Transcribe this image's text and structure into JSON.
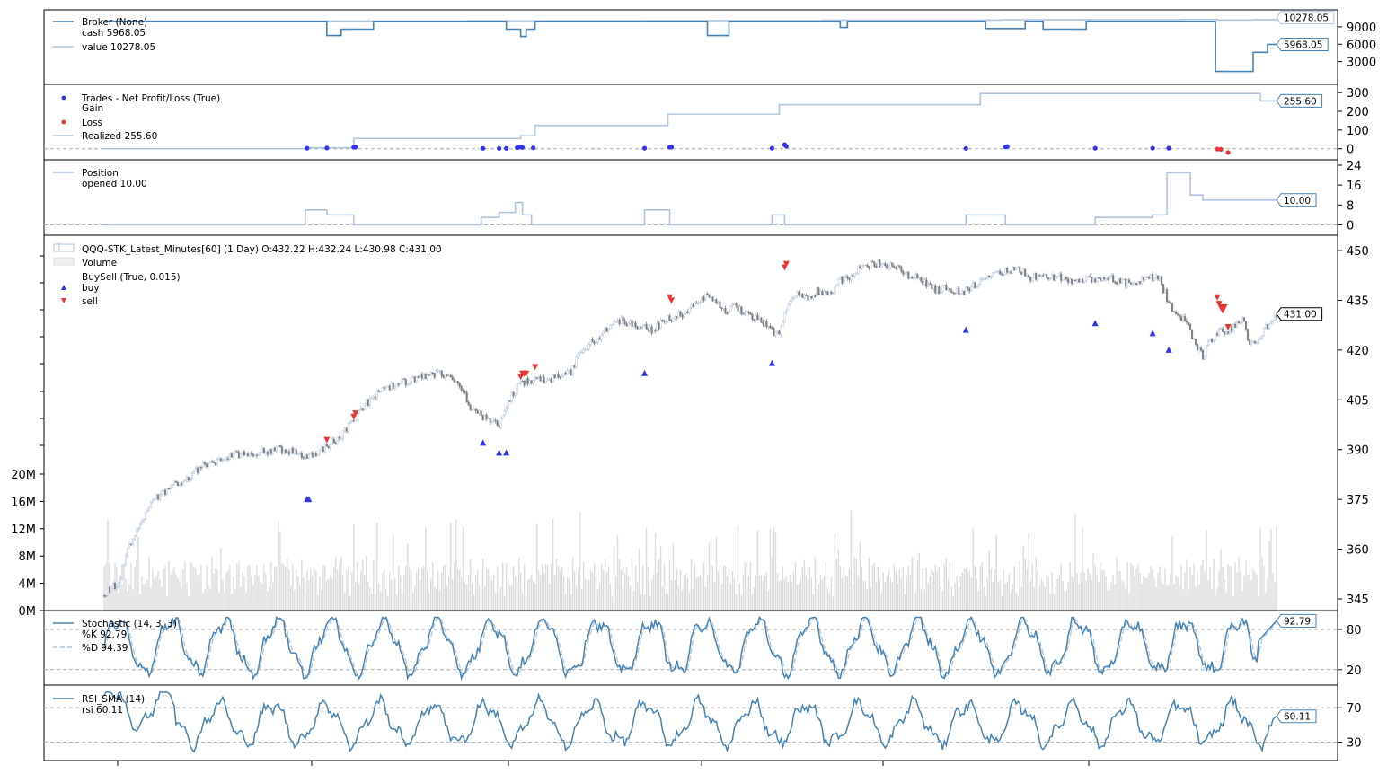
{
  "colors": {
    "line_blue": "#4682b4",
    "line_lightsteel": "#b0c4de",
    "gain": "#3333ee",
    "loss": "#ee3333",
    "candle_up": "#b0c4de",
    "candle_down": "#808080",
    "volume": "#dcdcdc",
    "refline": "#aaaaaa"
  },
  "chart_data": [
    {
      "id": "broker",
      "type": "line",
      "legend": [
        "Broker (None)",
        "cash 5968.05",
        "value 10278.05"
      ],
      "series": [
        {
          "name": "cash",
          "last": 5968.05,
          "tag": "5968.05",
          "steps": [
            [
              0,
              9950
            ],
            [
              124,
              9950
            ],
            [
              124,
              7500
            ],
            [
              132,
              7500
            ],
            [
              132,
              8600
            ],
            [
              150,
              8600
            ],
            [
              150,
              9950
            ],
            [
              224,
              9950
            ],
            [
              224,
              8600
            ],
            [
              232,
              8600
            ],
            [
              232,
              7350
            ],
            [
              235,
              7350
            ],
            [
              235,
              8600
            ],
            [
              240,
              8600
            ],
            [
              240,
              9950
            ],
            [
              336,
              9950
            ],
            [
              336,
              7500
            ],
            [
              348,
              7500
            ],
            [
              348,
              9950
            ],
            [
              410,
              9950
            ],
            [
              410,
              8900
            ],
            [
              414,
              8900
            ],
            [
              414,
              9950
            ],
            [
              491,
              9950
            ],
            [
              491,
              8700
            ],
            [
              513,
              8700
            ],
            [
              513,
              9950
            ],
            [
              523,
              9950
            ],
            [
              523,
              8600
            ],
            [
              547,
              8600
            ],
            [
              547,
              9950
            ],
            [
              619,
              9950
            ],
            [
              619,
              1300
            ],
            [
              640,
              1300
            ],
            [
              640,
              4600
            ],
            [
              648,
              4600
            ],
            [
              648,
              5968.05
            ],
            [
              654,
              5968.05
            ]
          ]
        },
        {
          "name": "value",
          "last": 10278.05,
          "tag": "10278.05",
          "steps": [
            [
              0,
              10000
            ],
            [
              100,
              10010
            ],
            [
              200,
              10050
            ],
            [
              300,
              10080
            ],
            [
              400,
              10150
            ],
            [
              500,
              10220
            ],
            [
              600,
              10280
            ],
            [
              620,
              10180
            ],
            [
              640,
              10240
            ],
            [
              654,
              10278.05
            ]
          ]
        }
      ],
      "yticks": [
        3000,
        6000,
        9000
      ],
      "ylim": [
        0,
        11000
      ]
    },
    {
      "id": "trades",
      "type": "scatter",
      "legend": [
        "Trades - Net Profit/Loss (True)",
        "Gain",
        "Loss",
        "Realized 255.60"
      ],
      "realized_steps": [
        [
          0,
          0
        ],
        [
          112,
          0
        ],
        [
          112,
          5
        ],
        [
          139,
          5
        ],
        [
          139,
          55
        ],
        [
          232,
          55
        ],
        [
          232,
          70
        ],
        [
          240,
          70
        ],
        [
          240,
          125
        ],
        [
          314,
          125
        ],
        [
          314,
          185
        ],
        [
          376,
          185
        ],
        [
          376,
          235
        ],
        [
          488,
          235
        ],
        [
          488,
          295
        ],
        [
          640,
          295
        ],
        [
          644,
          255.6
        ],
        [
          654,
          255.6
        ]
      ],
      "realized_tag": "255.60",
      "gains": [
        [
          113,
          3
        ],
        [
          124,
          4
        ],
        [
          139,
          8
        ],
        [
          140,
          9
        ],
        [
          211,
          2
        ],
        [
          220,
          2
        ],
        [
          224,
          2
        ],
        [
          230,
          6
        ],
        [
          231,
          8
        ],
        [
          232,
          10
        ],
        [
          233,
          7
        ],
        [
          239,
          5
        ],
        [
          301,
          3
        ],
        [
          315,
          8
        ],
        [
          316,
          9
        ],
        [
          372,
          3
        ],
        [
          379,
          22
        ],
        [
          380,
          13
        ],
        [
          480,
          2
        ],
        [
          502,
          10
        ],
        [
          503,
          12
        ],
        [
          552,
          3
        ],
        [
          584,
          3
        ],
        [
          593,
          3
        ]
      ],
      "losses": [
        [
          620,
          -2
        ],
        [
          622,
          -3
        ],
        [
          626,
          -20
        ]
      ],
      "yticks": [
        0,
        100,
        200,
        300
      ],
      "ylim": [
        -30,
        315
      ]
    },
    {
      "id": "position",
      "type": "line",
      "legend": [
        "Position",
        "opened 10.00"
      ],
      "steps": [
        [
          0,
          0
        ],
        [
          112,
          0
        ],
        [
          112,
          6
        ],
        [
          124,
          6
        ],
        [
          124,
          4
        ],
        [
          139,
          4
        ],
        [
          139,
          0
        ],
        [
          210,
          0
        ],
        [
          210,
          3
        ],
        [
          220,
          3
        ],
        [
          220,
          5
        ],
        [
          229,
          5
        ],
        [
          229,
          9
        ],
        [
          233,
          9
        ],
        [
          233,
          4
        ],
        [
          238,
          4
        ],
        [
          238,
          0
        ],
        [
          301,
          0
        ],
        [
          301,
          6
        ],
        [
          315,
          6
        ],
        [
          315,
          0
        ],
        [
          372,
          0
        ],
        [
          372,
          4
        ],
        [
          379,
          4
        ],
        [
          379,
          0
        ],
        [
          480,
          0
        ],
        [
          480,
          4
        ],
        [
          502,
          4
        ],
        [
          502,
          0
        ],
        [
          552,
          0
        ],
        [
          552,
          3
        ],
        [
          584,
          3
        ],
        [
          584,
          4
        ],
        [
          592,
          4
        ],
        [
          592,
          21
        ],
        [
          605,
          21
        ],
        [
          605,
          12
        ],
        [
          612,
          12
        ],
        [
          612,
          10
        ],
        [
          654,
          10
        ]
      ],
      "tag": "10.00",
      "yticks": [
        0,
        8,
        16,
        24
      ],
      "ylim": [
        -2,
        24
      ]
    },
    {
      "id": "price",
      "type": "candlestick",
      "legend": [
        "QQQ-STK_Latest_Minutes[60] (1 Day) O:432.22 H:432.24 L:430.98 C:431.00",
        "Volume",
        "BuySell (True, 0.015)",
        "buy",
        "sell"
      ],
      "close_anchors": [
        [
          0,
          346
        ],
        [
          3,
          348
        ],
        [
          8,
          350
        ],
        [
          12,
          358
        ],
        [
          18,
          366
        ],
        [
          24,
          372
        ],
        [
          30,
          376
        ],
        [
          40,
          380
        ],
        [
          46,
          381
        ],
        [
          54,
          385
        ],
        [
          62,
          386
        ],
        [
          70,
          388
        ],
        [
          78,
          389
        ],
        [
          86,
          389
        ],
        [
          94,
          390
        ],
        [
          100,
          390
        ],
        [
          106,
          389
        ],
        [
          112,
          388
        ],
        [
          118,
          389
        ],
        [
          124,
          391
        ],
        [
          130,
          393
        ],
        [
          136,
          397
        ],
        [
          142,
          402
        ],
        [
          148,
          405
        ],
        [
          156,
          408
        ],
        [
          164,
          410
        ],
        [
          172,
          411
        ],
        [
          180,
          412
        ],
        [
          186,
          413
        ],
        [
          192,
          412
        ],
        [
          198,
          410
        ],
        [
          204,
          403
        ],
        [
          210,
          400
        ],
        [
          216,
          398
        ],
        [
          220,
          397
        ],
        [
          225,
          405
        ],
        [
          232,
          410
        ],
        [
          238,
          411
        ],
        [
          246,
          411
        ],
        [
          254,
          412
        ],
        [
          260,
          413
        ],
        [
          264,
          418
        ],
        [
          270,
          422
        ],
        [
          276,
          424
        ],
        [
          282,
          428
        ],
        [
          288,
          429
        ],
        [
          294,
          428
        ],
        [
          300,
          427
        ],
        [
          306,
          426
        ],
        [
          312,
          429
        ],
        [
          318,
          430
        ],
        [
          326,
          432
        ],
        [
          334,
          436
        ],
        [
          340,
          435
        ],
        [
          346,
          432
        ],
        [
          352,
          433
        ],
        [
          358,
          431
        ],
        [
          364,
          430
        ],
        [
          370,
          427
        ],
        [
          376,
          424
        ],
        [
          380,
          433
        ],
        [
          386,
          437
        ],
        [
          392,
          436
        ],
        [
          398,
          438
        ],
        [
          404,
          437
        ],
        [
          410,
          441
        ],
        [
          416,
          442
        ],
        [
          422,
          445
        ],
        [
          428,
          446
        ],
        [
          434,
          446
        ],
        [
          440,
          445
        ],
        [
          446,
          443
        ],
        [
          452,
          442
        ],
        [
          458,
          440
        ],
        [
          464,
          438
        ],
        [
          470,
          439
        ],
        [
          478,
          437
        ],
        [
          486,
          440
        ],
        [
          494,
          442
        ],
        [
          502,
          444
        ],
        [
          510,
          444
        ],
        [
          516,
          442
        ],
        [
          522,
          442
        ],
        [
          528,
          442
        ],
        [
          534,
          442
        ],
        [
          540,
          440
        ],
        [
          546,
          441
        ],
        [
          552,
          441
        ],
        [
          558,
          442
        ],
        [
          564,
          441
        ],
        [
          570,
          440
        ],
        [
          576,
          440
        ],
        [
          582,
          442
        ],
        [
          588,
          441
        ],
        [
          594,
          433
        ],
        [
          600,
          430
        ],
        [
          604,
          427
        ],
        [
          608,
          422
        ],
        [
          612,
          418
        ],
        [
          616,
          423
        ],
        [
          620,
          425
        ],
        [
          626,
          426
        ],
        [
          630,
          427
        ],
        [
          634,
          430
        ],
        [
          638,
          421
        ],
        [
          642,
          423
        ],
        [
          646,
          426
        ],
        [
          654,
          431
        ]
      ],
      "last_close": 431.0,
      "tag": "431.00",
      "buys": [
        [
          113,
          375
        ],
        [
          114,
          375
        ],
        [
          211,
          392
        ],
        [
          220,
          389
        ],
        [
          224,
          389
        ],
        [
          301,
          413
        ],
        [
          372,
          416
        ],
        [
          480,
          426
        ],
        [
          552,
          428
        ],
        [
          584,
          425
        ],
        [
          593,
          420
        ]
      ],
      "sells": [
        [
          124,
          393
        ],
        [
          139,
          400
        ],
        [
          140,
          401
        ],
        [
          232,
          412
        ],
        [
          233,
          413
        ],
        [
          234,
          413
        ],
        [
          235,
          413
        ],
        [
          240,
          415
        ],
        [
          315,
          436
        ],
        [
          316,
          435
        ],
        [
          379,
          445
        ],
        [
          380,
          446
        ],
        [
          620,
          436
        ],
        [
          621,
          434
        ],
        [
          622,
          433
        ],
        [
          623,
          432
        ],
        [
          624,
          433
        ],
        [
          626,
          427
        ]
      ],
      "yticks": [
        345,
        360,
        375,
        390,
        405,
        420,
        435,
        450
      ],
      "ylim": [
        336,
        453
      ],
      "volume_yticks": [
        "0M",
        "4M",
        "8M",
        "12M",
        "16M",
        "20M"
      ],
      "volume_max_M": 20
    },
    {
      "id": "stochastic",
      "type": "line",
      "legend": [
        "Stochastic (14, 3, 3)",
        "%K 92.79",
        "%D 94.39"
      ],
      "k_last": 92.79,
      "d_last": 94.39,
      "tag": "92.79",
      "reflines": [
        80,
        20
      ],
      "yticks": [
        20,
        80
      ],
      "ylim": [
        5,
        100
      ]
    },
    {
      "id": "rsi",
      "type": "line",
      "legend": [
        "RSI_SMA (14)",
        "rsi 60.11"
      ],
      "last": 60.11,
      "tag": "60.11",
      "reflines": [
        70,
        30
      ],
      "yticks": [
        30,
        70
      ],
      "ylim": [
        15,
        90
      ]
    }
  ],
  "bar_count": 654
}
